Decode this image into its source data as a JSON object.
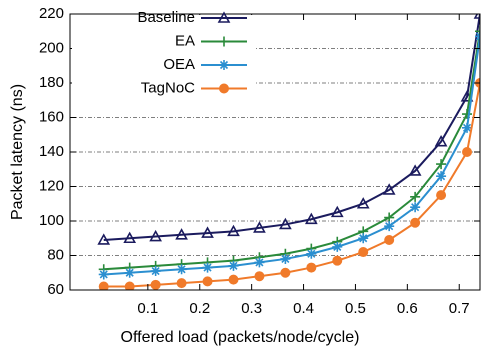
{
  "chart_data": {
    "type": "line",
    "xlabel": "Offered load (packets/node/cycle)",
    "ylabel": "Packet latency (ns)",
    "x": [
      0.015,
      0.065,
      0.115,
      0.165,
      0.215,
      0.265,
      0.315,
      0.365,
      0.415,
      0.465,
      0.515,
      0.565,
      0.615,
      0.665,
      0.715,
      0.74
    ],
    "series": [
      {
        "name": "Baseline",
        "color": "#1b1b5e",
        "marker": "triangle",
        "values": [
          89,
          90,
          91,
          92,
          93,
          94,
          96,
          98,
          101,
          105,
          110,
          118,
          129,
          146,
          172,
          220
        ]
      },
      {
        "name": "EA",
        "color": "#2a8a3a",
        "marker": "plus",
        "values": [
          72,
          73,
          74,
          75,
          76,
          77,
          79,
          81,
          84,
          88,
          94,
          102,
          114,
          133,
          162,
          210
        ]
      },
      {
        "name": "OEA",
        "color": "#2b8fd0",
        "marker": "star",
        "values": [
          69,
          70,
          71,
          72,
          73,
          74,
          76,
          78,
          81,
          85,
          90,
          97,
          108,
          126,
          154,
          207
        ]
      },
      {
        "name": "TagNoC",
        "color": "#f07a2a",
        "marker": "circle",
        "values": [
          62,
          62,
          63,
          64,
          65,
          66,
          68,
          70,
          73,
          77,
          82,
          89,
          99,
          115,
          140,
          180
        ]
      }
    ],
    "xlim": [
      -0.05,
      0.74
    ],
    "ylim": [
      60,
      220
    ],
    "xticks": [
      0.1,
      0.2,
      0.3,
      0.4,
      0.5,
      0.6,
      0.7
    ],
    "yticks": [
      60,
      80,
      100,
      120,
      140,
      160,
      180,
      200,
      220
    ],
    "grid": true,
    "legend": "upper left"
  }
}
